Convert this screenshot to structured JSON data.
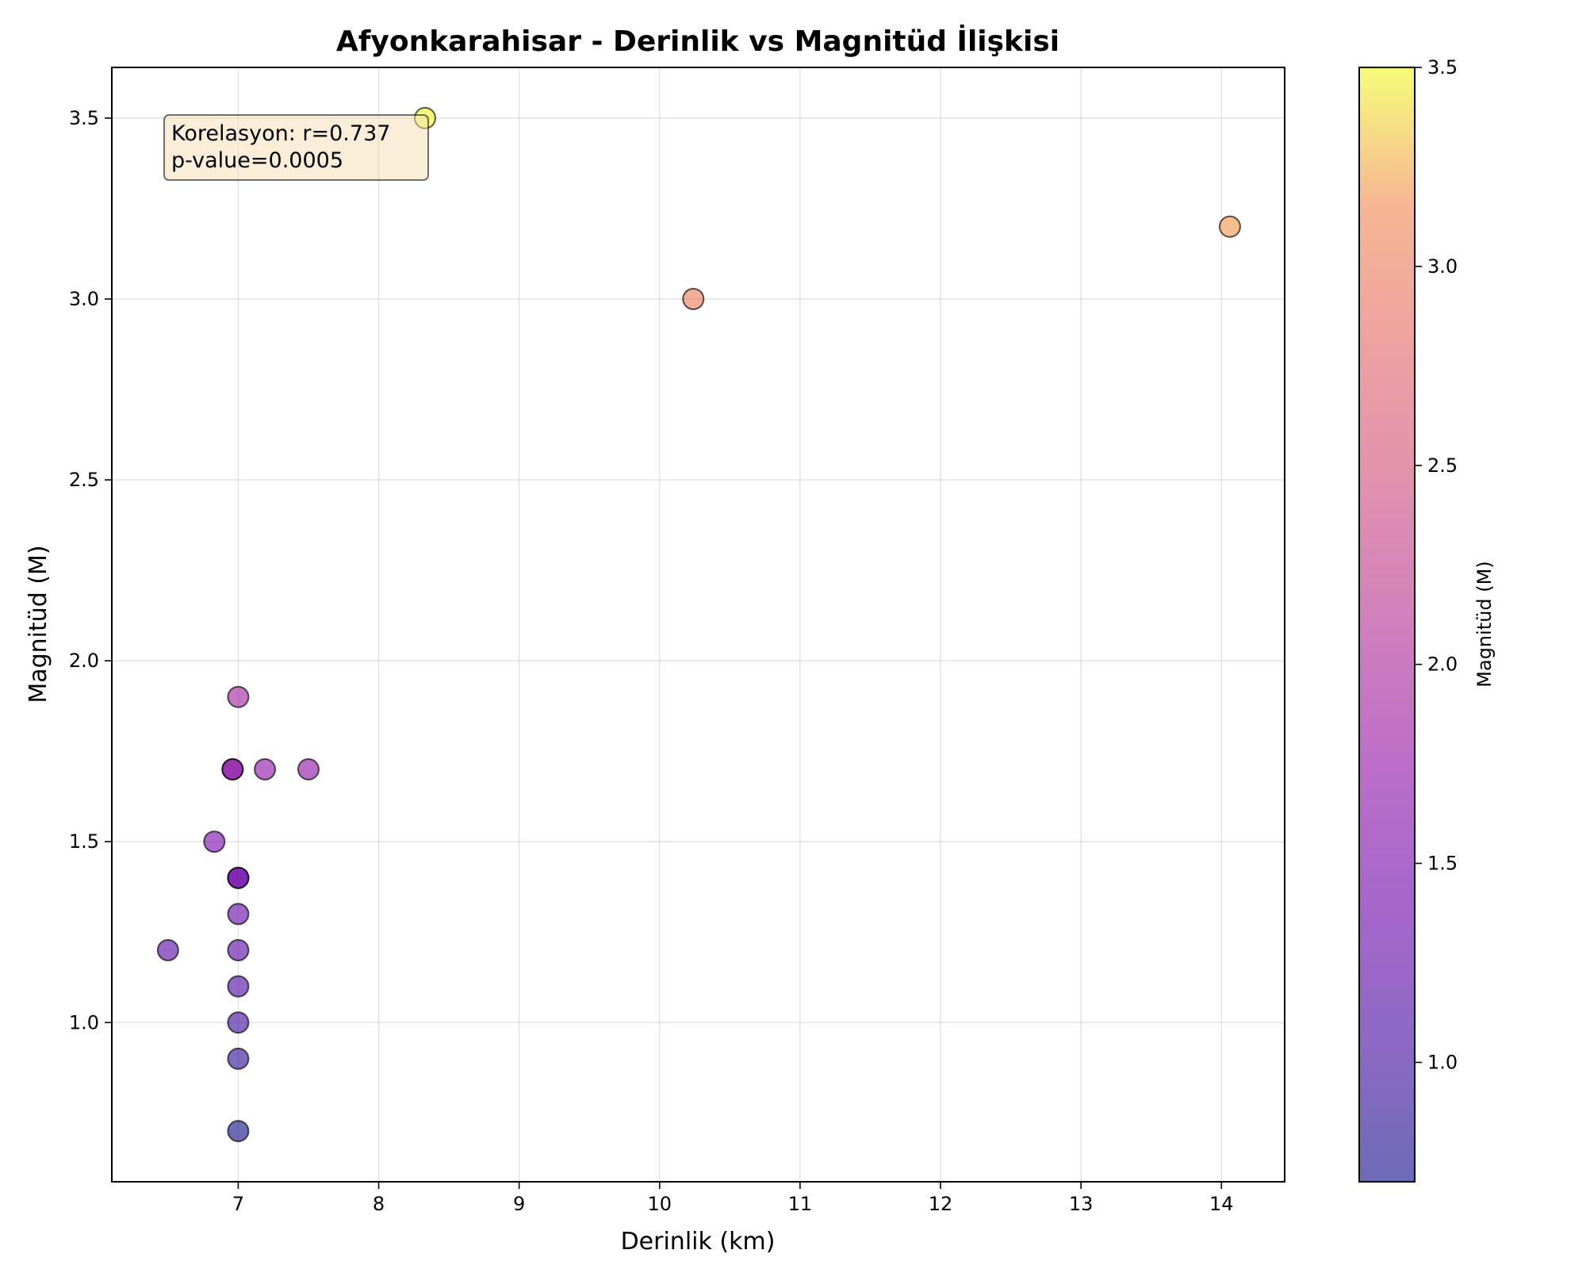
{
  "chart_data": {
    "type": "scatter",
    "title": "Afyonkarahisar - Derinlik vs Magnitüd İlişkisi",
    "xlabel": "Derinlik (km)",
    "ylabel": "Magnitüd (M)",
    "xlim": [
      6.1,
      14.45
    ],
    "ylim": [
      0.56,
      3.64
    ],
    "xticks": [
      7,
      8,
      9,
      10,
      11,
      12,
      13,
      14
    ],
    "yticks": [
      1.0,
      1.5,
      2.0,
      2.5,
      3.0,
      3.5
    ],
    "ytick_labels": [
      "1.0",
      "1.5",
      "2.0",
      "2.5",
      "3.0",
      "3.5"
    ],
    "grid": true,
    "annotation": {
      "lines": [
        "Korelasyon: r=0.737",
        "p-value=0.0005"
      ],
      "placement": "top-left"
    },
    "colorbar": {
      "label": "Magnitüd (M)",
      "range": [
        0.7,
        3.5
      ],
      "ticks": [
        1.0,
        1.5,
        2.0,
        2.5,
        3.0,
        3.5
      ],
      "tick_labels": [
        "1.0",
        "1.5",
        "2.0",
        "2.5",
        "3.0",
        "3.5"
      ],
      "colormap": "plasma"
    },
    "points": [
      {
        "x": 8.33,
        "y": 3.5
      },
      {
        "x": 10.24,
        "y": 3.0
      },
      {
        "x": 14.06,
        "y": 3.2
      },
      {
        "x": 7.0,
        "y": 1.9
      },
      {
        "x": 6.96,
        "y": 1.7
      },
      {
        "x": 6.96,
        "y": 1.7
      },
      {
        "x": 7.19,
        "y": 1.7
      },
      {
        "x": 7.5,
        "y": 1.7
      },
      {
        "x": 6.83,
        "y": 1.5
      },
      {
        "x": 7.0,
        "y": 1.4
      },
      {
        "x": 7.0,
        "y": 1.4
      },
      {
        "x": 7.0,
        "y": 1.3
      },
      {
        "x": 6.5,
        "y": 1.2
      },
      {
        "x": 7.0,
        "y": 1.2
      },
      {
        "x": 7.0,
        "y": 1.1
      },
      {
        "x": 7.0,
        "y": 1.0
      },
      {
        "x": 7.0,
        "y": 0.9
      },
      {
        "x": 7.0,
        "y": 0.7
      }
    ]
  }
}
